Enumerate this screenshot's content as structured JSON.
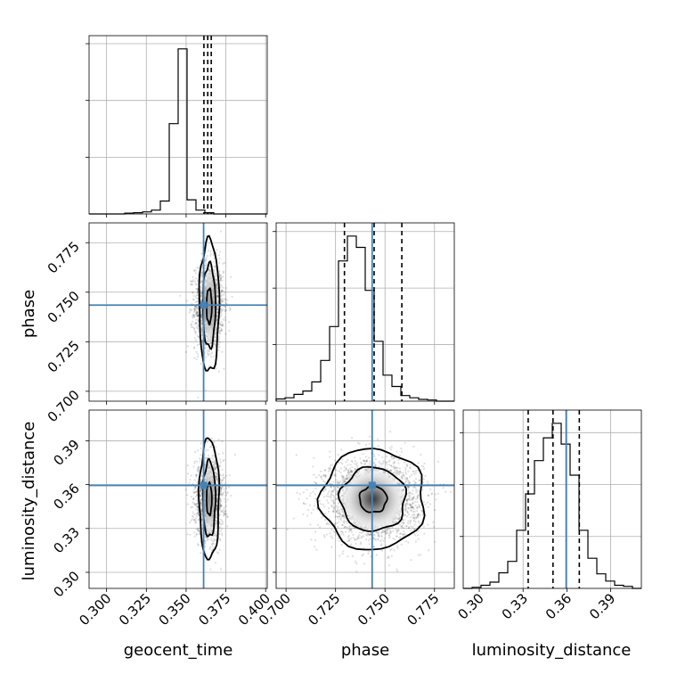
{
  "chart_data": {
    "type": "corner",
    "parameters": [
      "geocent_time",
      "phase",
      "luminosity_distance"
    ],
    "labels": {
      "geocent_time": "geocent_time",
      "phase": "phase",
      "luminosity_distance": "luminosity_distance"
    },
    "ranges": {
      "geocent_time": [
        0.289,
        0.401
      ],
      "phase": [
        0.695,
        0.785
      ],
      "luminosity_distance": [
        0.289,
        0.411
      ]
    },
    "ticks": {
      "geocent_time": [
        0.3,
        0.325,
        0.35,
        0.375,
        0.4
      ],
      "phase": [
        0.7,
        0.725,
        0.75,
        0.775
      ],
      "luminosity_distance": [
        0.3,
        0.33,
        0.36,
        0.39
      ]
    },
    "tick_labels": {
      "geocent_time": [
        "0.300",
        "0.325",
        "0.350",
        "0.375",
        "0.400"
      ],
      "phase": [
        "0.700",
        "0.725",
        "0.750",
        "0.775"
      ],
      "luminosity_distance": [
        "0.30",
        "0.33",
        "0.36",
        "0.39"
      ]
    },
    "truths": {
      "geocent_time": 0.361,
      "phase": 0.7435,
      "luminosity_distance": 0.3595
    },
    "truth_color": "#4682b4",
    "quantiles": {
      "geocent_time": [
        0.3612,
        0.3636,
        0.3658
      ],
      "phase": [
        0.7295,
        0.7445,
        0.7585
      ],
      "luminosity_distance": [
        0.3335,
        0.3505,
        0.3685
      ]
    },
    "histograms": {
      "geocent_time": {
        "bin_start": 0.289,
        "bin_width": 0.0056,
        "counts": [
          0,
          0,
          0,
          0,
          0.3,
          0.5,
          0.8,
          1.5,
          5,
          35,
          64,
          5.5,
          1.5,
          0.5,
          0,
          0,
          0,
          0,
          0,
          0
        ]
      },
      "phase": {
        "bin_start": 0.695,
        "bin_width": 0.0045,
        "counts": [
          1,
          1.5,
          3,
          4.5,
          8.5,
          18,
          33,
          62,
          73,
          68,
          49,
          26.5,
          11.5,
          6.5,
          2.5,
          1.5,
          0.8,
          0.5,
          0,
          0
        ]
      },
      "luminosity_distance": {
        "bin_start": 0.289,
        "bin_width": 0.0061,
        "counts": [
          0,
          0.5,
          1.5,
          3,
          7.5,
          13,
          28,
          45.5,
          61.5,
          72.5,
          79.5,
          69.5,
          54.5,
          28,
          14.5,
          7,
          3.5,
          1.5,
          1,
          0
        ]
      }
    },
    "densities": {
      "geocent_time|phase": {
        "center": [
          0.3645,
          0.743
        ],
        "sigma": [
          0.0022,
          0.011
        ],
        "points": 1600,
        "spread": [
          0.0045,
          0.011
        ],
        "contour_levels": [
          0.5,
          1.2,
          1.9
        ],
        "contour_scale": [
          1.5,
          1.6
        ]
      },
      "geocent_time|luminosity_distance": {
        "center": [
          0.3645,
          0.35
        ],
        "sigma": [
          0.0022,
          0.014
        ],
        "points": 1600,
        "spread": [
          0.0045,
          0.014
        ],
        "contour_levels": [
          0.5,
          1.2,
          1.9
        ],
        "contour_scale": [
          1.5,
          1.55
        ]
      },
      "phase|luminosity_distance": {
        "center": [
          0.744,
          0.35
        ],
        "sigma": [
          0.011,
          0.014
        ],
        "points": 2600,
        "spread": [
          0.012,
          0.014
        ],
        "contour_levels": [
          0.5,
          1.2,
          1.9
        ],
        "contour_scale": [
          1.25,
          1.3
        ]
      }
    },
    "grid": true
  }
}
